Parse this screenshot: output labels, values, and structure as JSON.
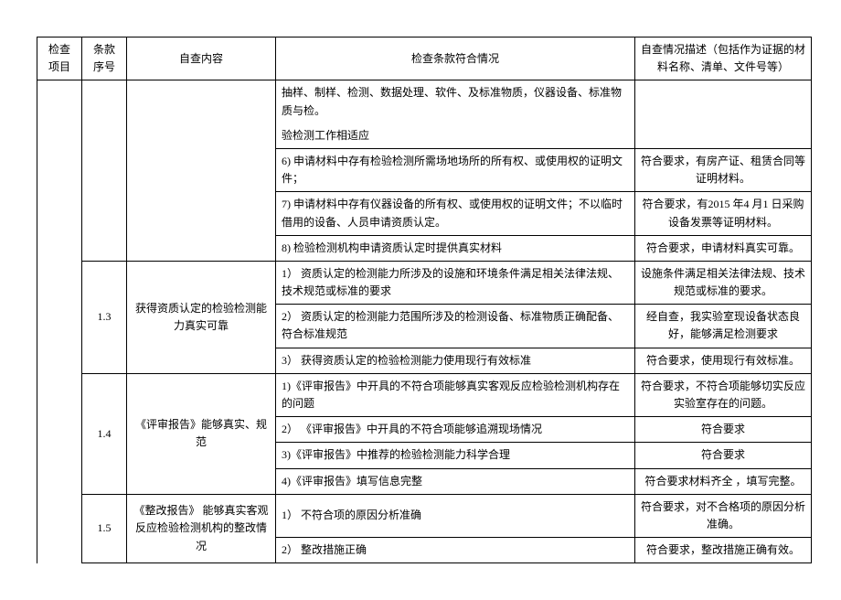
{
  "headers": {
    "c1": "检查\n项目",
    "c2": "条款\n序号",
    "c3": "自查内容",
    "c4": "检查条款符合情况",
    "c5": "自查情况描述（包括作为证据的材料名称、清单、文件号等）"
  },
  "rows": {
    "r1c4": "抽样、制样、检测、数据处理、软件、及标准物质，仪器设备、标准物质与检。",
    "r2c4": "验检测工作相适应",
    "r3c4": "6) 申请材料中存有检验检测所需场地场所的所有权、或使用权的证明文件；",
    "r3c5": "符合要求，有房产证、租赁合同等证明材料。",
    "r4c4": "7) 申请材料中存有仪器设备的所有权、或使用权的证明文件；不以临时借用的设备、人员申请资质认定。",
    "r4c5": "符合要求，有2015 年4 月1 日采购设备发票等证明材料。",
    "r5c4": "8) 检验检测机构申请资质认定时提供真实材料",
    "r5c5": "符合要求，申请材料真实可靠。",
    "s13num": "1.3",
    "s13c3": "获得资质认定的检验检测能力真实可靠",
    "r6c4": "1） 资质认定的检测能力所涉及的设施和环境条件满足相关法律法规、技术规范或标准的要求",
    "r6c5": "设施条件满足相关法律法规、技术规范或标准的要求。",
    "r7c4": "2） 资质认定的检测能力范围所涉及的检测设备、标准物质正确配备、符合标准规范",
    "r7c5": "经自查，我实验室现设备状态良好，能够满足检测要求",
    "r8c4": "3） 获得资质认定的检验检测能力使用现行有效标准",
    "r8c5": "符合要求，使用现行有效标准。",
    "s14num": "1.4",
    "s14c3": "《评审报告》能够真实、规范",
    "r9c4": "1)《评审报告》中开具的不符合项能够真实客观反应检验检测机构存在的问题",
    "r9c5": "符合要求，不符合项能够切实反应实验室存在的问题。",
    "r10c4": "2） 《评审报告》中开具的不符合项能够追溯现场情况",
    "r10c5": "符合要求",
    "r11c4": "3)《评审报告》中推荐的检验检测能力科学合理",
    "r11c5": "符合要求",
    "r12c4": "4)《评审报告》填写信息完整",
    "r12c5": "符合要求材料齐全 ，填写完整。",
    "s15num": "1.5",
    "s15c3": "《整改报告》 能够真实客观反应检验检测机构的整改情况",
    "r13c4": "1） 不符合项的原因分析准确",
    "r13c5": "符合要求，对不合格项的原因分析准确。",
    "r14c4": "2） 整改措施正确",
    "r14c5": "符合要求，整改措施正确有效。"
  }
}
